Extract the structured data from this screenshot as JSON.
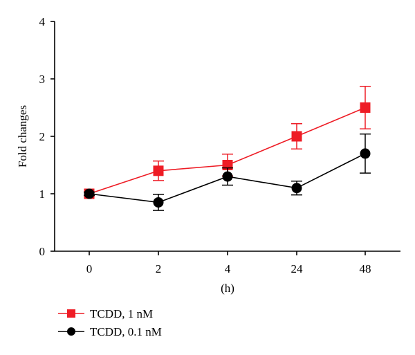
{
  "chart_data": {
    "type": "line",
    "title": "",
    "xlabel": "(h)",
    "ylabel": "Fold changes",
    "categories": [
      "0",
      "2",
      "4",
      "24",
      "48"
    ],
    "ylim": [
      0,
      4
    ],
    "yticks": [
      "0",
      "1",
      "2",
      "3",
      "4"
    ],
    "grid": false,
    "legend_position": "bottom-left",
    "series": [
      {
        "name": "TCDD, 1 nM",
        "color": "#ee1c25",
        "marker": "square",
        "values": [
          1.0,
          1.4,
          1.5,
          2.0,
          2.5
        ],
        "errors": [
          0.03,
          0.17,
          0.19,
          0.22,
          0.37
        ]
      },
      {
        "name": "TCDD, 0.1 nM",
        "color": "#000000",
        "marker": "circle",
        "values": [
          1.0,
          0.85,
          1.3,
          1.1,
          1.7
        ],
        "errors": [
          0.03,
          0.14,
          0.15,
          0.12,
          0.34
        ]
      }
    ]
  }
}
